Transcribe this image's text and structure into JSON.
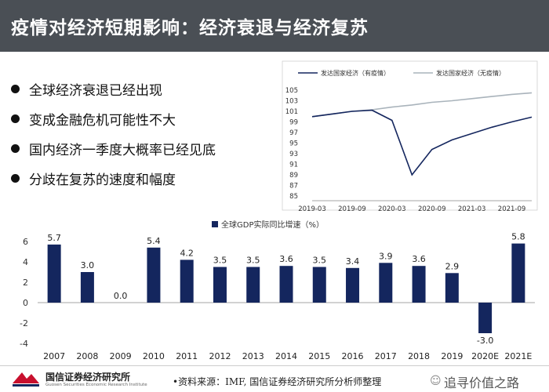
{
  "title": "疫情对经济短期影响：经济衰退与经济复苏",
  "bullets": [
    "全球经济衰退已经出现",
    "变成金融危机可能性不大",
    "国内经济一季度大概率已经见底",
    "分歧在复苏的速度和幅度"
  ],
  "colors": {
    "title_bg": "#4a4f55",
    "navy": "#14265e",
    "gray_line": "#a9b3bb"
  },
  "line_chart": {
    "type": "line",
    "series": [
      {
        "name": "发达国家经济（有疫情）",
        "x": [
          "2019-03",
          "2019-06",
          "2019-09",
          "2019-12",
          "2020-03",
          "2020-06",
          "2020-09",
          "2020-12",
          "2021-03",
          "2021-06",
          "2021-09",
          "2021-12"
        ],
        "values": [
          100,
          100.5,
          101,
          101.2,
          99.3,
          89,
          93.8,
          95.6,
          96.8,
          98,
          99,
          99.9
        ]
      },
      {
        "name": "发达国家经济（无疫情）",
        "x": [
          "2019-03",
          "2019-06",
          "2019-09",
          "2019-12",
          "2020-03",
          "2020-06",
          "2020-09",
          "2020-12",
          "2021-03",
          "2021-06",
          "2021-09",
          "2021-12"
        ],
        "values": [
          100,
          100.5,
          101,
          101.3,
          101.8,
          102.2,
          102.7,
          103,
          103.4,
          103.8,
          104.2,
          104.5
        ]
      }
    ],
    "ylim": [
      85,
      105
    ],
    "yticks": [
      "105",
      "103",
      "101",
      "99",
      "97",
      "95",
      "93",
      "91",
      "89",
      "87",
      "85"
    ],
    "xticks": [
      "2019-03",
      "2019-09",
      "2020-03",
      "2020-09",
      "2021-03",
      "2021-09"
    ]
  },
  "bar_chart": {
    "type": "bar",
    "legend": "全球GDP实际同比增速（%）",
    "categories": [
      "2007",
      "2008",
      "2009",
      "2010",
      "2011",
      "2012",
      "2013",
      "2014",
      "2015",
      "2016",
      "2017",
      "2018",
      "2019",
      "2020E",
      "2021E"
    ],
    "values": [
      5.7,
      3.0,
      0.0,
      5.4,
      4.2,
      3.5,
      3.5,
      3.6,
      3.5,
      3.4,
      3.9,
      3.6,
      2.9,
      -3.0,
      5.8
    ],
    "labels": [
      "5.7",
      "3.0",
      "0.0",
      "5.4",
      "4.2",
      "3.5",
      "3.5",
      "3.6",
      "3.5",
      "3.4",
      "3.9",
      "3.6",
      "2.9",
      "-3.0",
      "5.8"
    ],
    "ylim": [
      -4,
      6
    ],
    "yticks": [
      "6",
      "4",
      "2",
      "0",
      "-2",
      "-4"
    ]
  },
  "footer": {
    "org_name": "国信证券经济研究所",
    "org_sub": "Guosen Securities Economic Research Institute",
    "source": "•资料来源：IMF, 国信证券经济研究所分析师整理",
    "watermark": "追寻价值之路"
  }
}
